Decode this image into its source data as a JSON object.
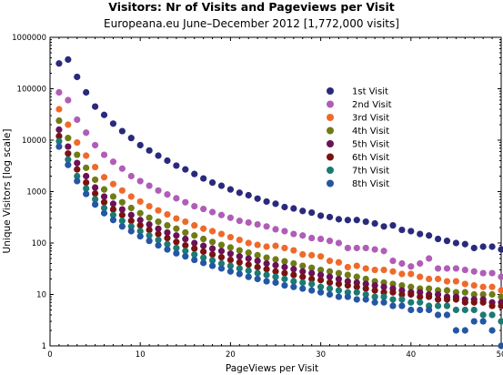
{
  "chart_data": {
    "type": "scatter",
    "title": "Visitors: Nr of Visits and Pageviews per Visit",
    "subtitle": "Europeana.eu June–December 2012 [1,772,000 visits]",
    "xlabel": "PageViews per Visit",
    "ylabel": "Unique Visitors [log scale]",
    "xlim": [
      0,
      50
    ],
    "ylim": [
      1,
      1000000
    ],
    "y_scale": "log",
    "grid": false,
    "legend_position": "top-right",
    "x_ticks": [
      0,
      10,
      20,
      30,
      40,
      50
    ],
    "x_tick_labels": [
      "0",
      "10",
      "20",
      "30",
      "40",
      "50"
    ],
    "y_ticks": [
      1,
      10,
      100,
      1000,
      10000,
      100000,
      1000000
    ],
    "y_tick_labels": [
      "1",
      "10",
      "100",
      "1000",
      "10000",
      "100000",
      "1000000"
    ],
    "x": [
      1,
      2,
      3,
      4,
      5,
      6,
      7,
      8,
      9,
      10,
      11,
      12,
      13,
      14,
      15,
      16,
      17,
      18,
      19,
      20,
      21,
      22,
      23,
      24,
      25,
      26,
      27,
      28,
      29,
      30,
      31,
      32,
      33,
      34,
      35,
      36,
      37,
      38,
      39,
      40,
      41,
      42,
      43,
      44,
      45,
      46,
      47,
      48,
      49,
      50
    ],
    "series": [
      {
        "name": "1st Visit",
        "color": "#2a2a7c",
        "values": [
          310000,
          370000,
          170000,
          85000,
          45000,
          31000,
          21000,
          15000,
          11000,
          8000,
          6300,
          5000,
          4000,
          3200,
          2700,
          2200,
          1800,
          1500,
          1300,
          1100,
          950,
          850,
          730,
          640,
          580,
          500,
          470,
          420,
          390,
          340,
          320,
          290,
          280,
          280,
          260,
          240,
          210,
          220,
          180,
          170,
          150,
          140,
          120,
          110,
          100,
          95,
          80,
          85,
          85,
          75
        ]
      },
      {
        "name": "2nd Visit",
        "color": "#b05db8",
        "values": [
          85000,
          60000,
          25000,
          14000,
          8000,
          5200,
          3800,
          2800,
          2000,
          1600,
          1300,
          1050,
          880,
          740,
          620,
          520,
          460,
          400,
          350,
          310,
          270,
          250,
          230,
          210,
          185,
          170,
          150,
          140,
          125,
          120,
          110,
          100,
          80,
          80,
          80,
          75,
          70,
          45,
          40,
          35,
          40,
          50,
          32,
          32,
          32,
          30,
          28,
          26,
          26,
          22
        ]
      },
      {
        "name": "3rd Visit",
        "color": "#ef6a2a",
        "values": [
          40000,
          20000,
          9000,
          5000,
          3000,
          1900,
          1400,
          1050,
          800,
          640,
          520,
          430,
          360,
          300,
          260,
          220,
          190,
          170,
          150,
          130,
          115,
          100,
          92,
          85,
          88,
          80,
          72,
          60,
          58,
          55,
          45,
          42,
          34,
          36,
          32,
          30,
          30,
          28,
          25,
          25,
          22,
          20,
          20,
          18,
          18,
          16,
          15,
          14,
          14,
          12
        ]
      },
      {
        "name": "4th Visit",
        "color": "#6f7b15",
        "values": [
          24000,
          11000,
          5200,
          2900,
          1700,
          1100,
          800,
          620,
          480,
          380,
          310,
          260,
          220,
          190,
          160,
          140,
          120,
          105,
          92,
          82,
          72,
          65,
          58,
          52,
          48,
          44,
          40,
          36,
          33,
          30,
          28,
          26,
          24,
          22,
          20,
          18,
          17,
          16,
          15,
          14,
          13,
          13,
          12,
          12,
          11,
          11,
          10,
          10,
          10,
          9
        ]
      },
      {
        "name": "5th Visit",
        "color": "#6a1158",
        "values": [
          16000,
          7500,
          3600,
          2000,
          1200,
          800,
          580,
          450,
          350,
          280,
          230,
          190,
          160,
          140,
          120,
          100,
          88,
          78,
          70,
          62,
          55,
          50,
          45,
          40,
          37,
          34,
          31,
          28,
          26,
          24,
          22,
          20,
          18,
          17,
          16,
          15,
          14,
          13,
          12,
          11,
          11,
          10,
          10,
          9,
          9,
          8,
          8,
          8,
          7,
          7
        ]
      },
      {
        "name": "6th Visit",
        "color": "#7a1212",
        "values": [
          12000,
          5500,
          2700,
          1500,
          920,
          620,
          450,
          350,
          270,
          220,
          180,
          150,
          125,
          105,
          90,
          78,
          68,
          60,
          53,
          47,
          42,
          38,
          34,
          31,
          28,
          26,
          24,
          22,
          20,
          19,
          17,
          16,
          15,
          14,
          13,
          12,
          11,
          11,
          10,
          10,
          9,
          9,
          8,
          8,
          8,
          7,
          7,
          7,
          6,
          6
        ]
      },
      {
        "name": "7th Visit",
        "color": "#1b7a72",
        "values": [
          9500,
          4200,
          2000,
          1150,
          710,
          480,
          350,
          270,
          210,
          170,
          140,
          115,
          95,
          80,
          70,
          60,
          52,
          46,
          40,
          36,
          32,
          29,
          26,
          24,
          22,
          20,
          18,
          17,
          16,
          14,
          13,
          12,
          11,
          11,
          10,
          9,
          9,
          8,
          8,
          7,
          7,
          6,
          6,
          6,
          5,
          5,
          5,
          4,
          4,
          3
        ]
      },
      {
        "name": "8th Visit",
        "color": "#2456a4",
        "values": [
          7500,
          3300,
          1600,
          900,
          560,
          380,
          280,
          210,
          170,
          135,
          110,
          90,
          75,
          63,
          55,
          47,
          41,
          36,
          32,
          28,
          25,
          22,
          20,
          18,
          17,
          15,
          14,
          13,
          12,
          11,
          10,
          9,
          9,
          8,
          8,
          7,
          7,
          6,
          6,
          5,
          5,
          5,
          4,
          4,
          2,
          2,
          3,
          3,
          2,
          1
        ]
      }
    ]
  }
}
